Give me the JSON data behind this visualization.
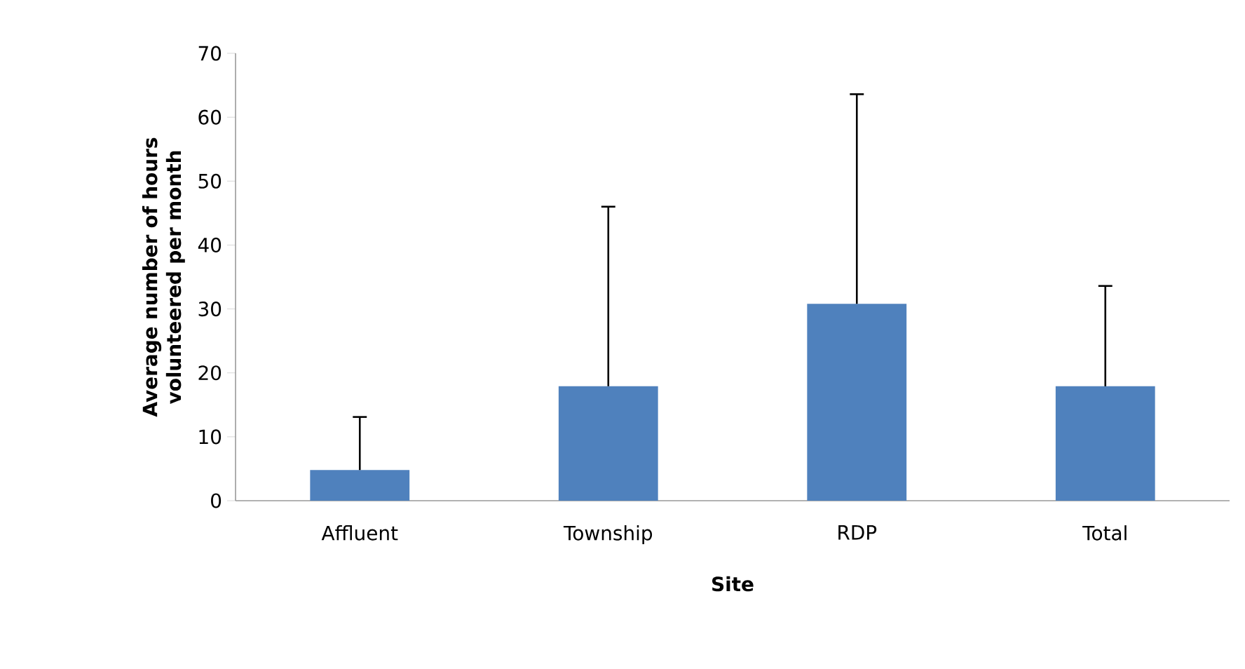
{
  "chart_data": {
    "type": "bar",
    "xlabel": "Site",
    "ylabel": "Average number of hours volunteered per month",
    "categories": [
      "Affluent",
      "Township",
      "RDP",
      "Total"
    ],
    "values": [
      4.8,
      17.9,
      30.8,
      17.9
    ],
    "errors": [
      [
        4.8,
        13.1
      ],
      [
        17.9,
        46.0
      ],
      [
        30.8,
        63.6
      ],
      [
        17.9,
        33.6
      ]
    ],
    "color": "#4f81bd",
    "ylim": [
      0,
      70
    ],
    "yticks": [
      0,
      10,
      20,
      30,
      40,
      50,
      60,
      70
    ],
    "grid": false
  }
}
